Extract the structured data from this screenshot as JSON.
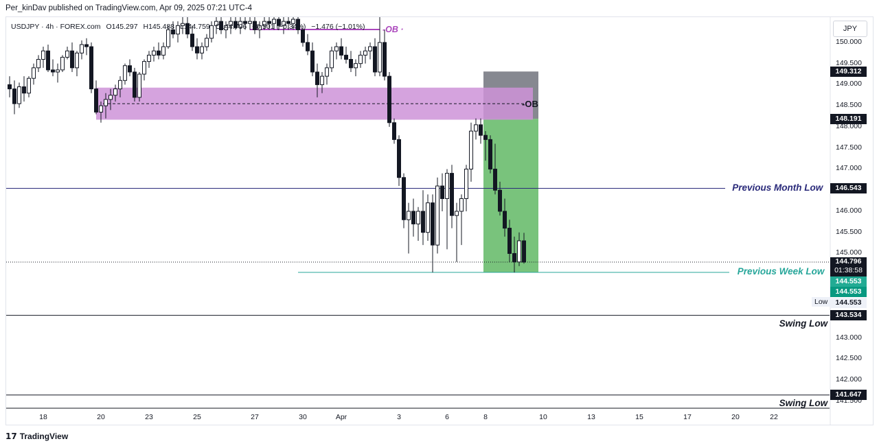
{
  "header": {
    "published": "Per_kinDav published on TradingView.com, Apr 09, 2025 07:21 UTC-4"
  },
  "ohlc": {
    "symbol_info": "USDJPY · 4h · FOREX.com",
    "open": "O145.297",
    "high": "H145.488",
    "low": "L144.759",
    "close": "C144.796",
    "change": "−0.501 (−0.34%)",
    "change2": "−1.476 (−1.01%)"
  },
  "currency": "JPY",
  "footer": {
    "brand": "TradingView"
  },
  "chart_data": {
    "type": "candlestick",
    "timeframe": "4h",
    "ylim": [
      141.35,
      150.6
    ],
    "y_ticks": [
      {
        "value": 150.0,
        "label": "150.000"
      },
      {
        "value": 149.5,
        "label": "149.500"
      },
      {
        "value": 149.0,
        "label": "149.000"
      },
      {
        "value": 148.5,
        "label": "148.500"
      },
      {
        "value": 148.0,
        "label": "148.000"
      },
      {
        "value": 147.5,
        "label": "147.500"
      },
      {
        "value": 147.0,
        "label": "147.000"
      },
      {
        "value": 146.0,
        "label": "146.000"
      },
      {
        "value": 145.5,
        "label": "145.500"
      },
      {
        "value": 145.0,
        "label": "145.000"
      },
      {
        "value": 143.0,
        "label": "143.000"
      },
      {
        "value": 142.5,
        "label": "142.500"
      },
      {
        "value": 142.0,
        "label": "142.000"
      },
      {
        "value": 141.5,
        "label": "141.500"
      }
    ],
    "x_ticks": [
      {
        "index": 7,
        "label": "18"
      },
      {
        "index": 19,
        "label": "20"
      },
      {
        "index": 29,
        "label": "23"
      },
      {
        "index": 39,
        "label": "25"
      },
      {
        "index": 51,
        "label": "27"
      },
      {
        "index": 61,
        "label": "30"
      },
      {
        "index": 69,
        "label": "Apr"
      },
      {
        "index": 81,
        "label": "3"
      },
      {
        "index": 91,
        "label": "6"
      },
      {
        "index": 99,
        "label": "8"
      },
      {
        "index": 111,
        "label": "10"
      },
      {
        "index": 121,
        "label": "13"
      },
      {
        "index": 131,
        "label": "15"
      },
      {
        "index": 141,
        "label": "17"
      },
      {
        "index": 151,
        "label": "20"
      },
      {
        "index": 159,
        "label": "22"
      }
    ],
    "x_range": [
      0,
      169
    ],
    "price_labels": [
      {
        "value": 149.312,
        "label": "149.312",
        "color": "#131722"
      },
      {
        "value": 148.191,
        "label": "148.191",
        "color": "#131722"
      },
      {
        "value": 146.543,
        "label": "146.543",
        "color": "#131722"
      },
      {
        "value": 144.796,
        "label": "144.796",
        "color": "#131722",
        "sub": "01:38:58"
      },
      {
        "value": 144.553,
        "label": "144.553",
        "color": "#22ab94"
      },
      {
        "value": 144.553,
        "label": "144.553",
        "color": "#089981"
      },
      {
        "value": 144.553,
        "label": "144.553",
        "color": "#eef1f8",
        "text_color": "#131722",
        "tag": "Low"
      },
      {
        "value": 143.534,
        "label": "143.534",
        "color": "#131722"
      },
      {
        "value": 141.647,
        "label": "141.647",
        "color": "#131722"
      }
    ],
    "levels": [
      {
        "name": "Previous Month Low",
        "value": 146.543,
        "color": "#2a2a7a"
      },
      {
        "name": "Previous Week Low",
        "value": 144.553,
        "color": "#26a69a"
      },
      {
        "name": "Swing Low",
        "value": 143.534,
        "color": "#131722"
      },
      {
        "name": "Swing Low",
        "value": 141.647,
        "color": "#131722"
      }
    ],
    "zones": [
      {
        "label": "OB",
        "top": 148.93,
        "bottom": 148.17,
        "x_from": 18,
        "x_to": 110,
        "color": "#ce93d8",
        "mid": 148.55
      },
      {
        "label": "OB",
        "top": 150.05,
        "bottom": 150.0,
        "x_from": 50,
        "x_to": 77,
        "color": "#ab47bc"
      }
    ],
    "position": {
      "entry": 148.191,
      "stop": 149.312,
      "target": 144.553,
      "x_from": 99,
      "x_to": 110
    },
    "current_price": 144.796,
    "candles": [
      [
        0,
        149.0,
        149.2,
        148.7,
        148.9
      ],
      [
        1,
        148.9,
        149.1,
        148.3,
        148.55
      ],
      [
        2,
        148.55,
        149.05,
        148.45,
        148.95
      ],
      [
        3,
        148.95,
        149.2,
        148.6,
        148.8
      ],
      [
        4,
        148.8,
        149.2,
        148.7,
        149.15
      ],
      [
        5,
        149.15,
        149.5,
        149.0,
        149.4
      ],
      [
        6,
        149.4,
        149.7,
        149.3,
        149.6
      ],
      [
        7,
        149.6,
        149.9,
        149.4,
        149.8
      ],
      [
        8,
        149.8,
        149.95,
        149.3,
        149.35
      ],
      [
        9,
        149.35,
        149.6,
        149.2,
        149.3
      ],
      [
        10,
        149.3,
        149.5,
        149.05,
        149.35
      ],
      [
        11,
        149.35,
        149.7,
        149.3,
        149.65
      ],
      [
        12,
        149.65,
        149.9,
        149.6,
        149.8
      ],
      [
        13,
        149.8,
        150.0,
        149.3,
        149.4
      ],
      [
        14,
        149.4,
        149.8,
        149.2,
        149.75
      ],
      [
        15,
        149.75,
        150.05,
        149.6,
        149.95
      ],
      [
        16,
        149.95,
        150.1,
        149.7,
        149.9
      ],
      [
        17,
        149.9,
        150.0,
        148.8,
        148.9
      ],
      [
        18,
        148.9,
        149.1,
        148.3,
        148.35
      ],
      [
        19,
        148.35,
        148.6,
        148.1,
        148.5
      ],
      [
        20,
        148.5,
        148.8,
        148.2,
        148.65
      ],
      [
        21,
        148.65,
        148.9,
        148.4,
        148.75
      ],
      [
        22,
        148.75,
        149.0,
        148.6,
        148.9
      ],
      [
        23,
        148.9,
        149.2,
        148.7,
        149.1
      ],
      [
        24,
        149.1,
        149.5,
        149.0,
        149.45
      ],
      [
        25,
        149.45,
        149.6,
        149.2,
        149.3
      ],
      [
        26,
        149.3,
        149.4,
        148.6,
        148.7
      ],
      [
        27,
        148.7,
        149.3,
        148.6,
        149.25
      ],
      [
        28,
        149.25,
        149.6,
        149.1,
        149.55
      ],
      [
        29,
        149.55,
        149.8,
        149.4,
        149.7
      ],
      [
        30,
        149.7,
        149.9,
        149.55,
        149.8
      ],
      [
        31,
        149.8,
        150.0,
        149.6,
        149.7
      ],
      [
        32,
        149.7,
        150.0,
        149.6,
        149.9
      ],
      [
        33,
        149.9,
        150.4,
        149.85,
        150.3
      ],
      [
        34,
        150.3,
        150.5,
        150.1,
        150.2
      ],
      [
        35,
        150.2,
        150.5,
        150.0,
        150.4
      ],
      [
        36,
        150.4,
        150.6,
        150.2,
        150.45
      ],
      [
        37,
        150.45,
        150.6,
        150.1,
        150.2
      ],
      [
        38,
        150.2,
        150.4,
        149.8,
        149.9
      ],
      [
        39,
        149.9,
        150.1,
        149.6,
        149.75
      ],
      [
        40,
        149.75,
        150.0,
        149.6,
        149.9
      ],
      [
        41,
        149.9,
        150.2,
        149.8,
        150.1
      ],
      [
        42,
        150.1,
        150.5,
        150.0,
        150.4
      ],
      [
        43,
        150.4,
        150.6,
        150.2,
        150.5
      ],
      [
        44,
        150.5,
        150.6,
        150.2,
        150.3
      ],
      [
        45,
        150.3,
        150.5,
        150.1,
        150.4
      ],
      [
        46,
        150.4,
        150.6,
        150.2,
        150.5
      ],
      [
        47,
        150.5,
        150.6,
        150.3,
        150.35
      ],
      [
        48,
        150.35,
        150.6,
        150.2,
        150.5
      ],
      [
        49,
        150.5,
        150.6,
        150.3,
        150.45
      ],
      [
        50,
        150.45,
        150.6,
        150.3,
        150.5
      ],
      [
        51,
        150.5,
        150.6,
        150.2,
        150.3
      ],
      [
        52,
        150.3,
        150.5,
        150.1,
        150.4
      ],
      [
        53,
        150.4,
        150.6,
        150.3,
        150.5
      ],
      [
        54,
        150.5,
        150.6,
        150.3,
        150.45
      ],
      [
        55,
        150.45,
        150.6,
        150.3,
        150.55
      ],
      [
        56,
        150.55,
        150.6,
        150.3,
        150.4
      ],
      [
        57,
        150.4,
        150.6,
        150.2,
        150.5
      ],
      [
        58,
        150.5,
        150.6,
        150.3,
        150.45
      ],
      [
        59,
        150.45,
        150.6,
        150.3,
        150.55
      ],
      [
        60,
        150.55,
        150.6,
        150.2,
        150.3
      ],
      [
        61,
        150.3,
        150.4,
        149.9,
        150.0
      ],
      [
        62,
        150.0,
        150.2,
        149.7,
        149.8
      ],
      [
        63,
        149.8,
        150.0,
        149.2,
        149.3
      ],
      [
        64,
        149.3,
        149.5,
        148.7,
        149.0
      ],
      [
        65,
        149.0,
        149.3,
        148.8,
        149.2
      ],
      [
        66,
        149.2,
        149.5,
        149.0,
        149.4
      ],
      [
        67,
        149.4,
        149.9,
        149.3,
        149.8
      ],
      [
        68,
        149.8,
        150.0,
        149.6,
        149.9
      ],
      [
        69,
        149.9,
        150.1,
        149.6,
        149.7
      ],
      [
        70,
        149.7,
        149.9,
        149.5,
        149.6
      ],
      [
        71,
        149.6,
        149.8,
        149.3,
        149.4
      ],
      [
        72,
        149.4,
        149.6,
        149.2,
        149.5
      ],
      [
        73,
        149.5,
        149.8,
        149.4,
        149.7
      ],
      [
        74,
        149.7,
        149.9,
        149.5,
        149.8
      ],
      [
        75,
        149.8,
        150.0,
        149.6,
        149.9
      ],
      [
        76,
        149.9,
        150.1,
        149.2,
        149.3
      ],
      [
        77,
        149.3,
        150.6,
        149.2,
        150.0
      ],
      [
        78,
        150.0,
        150.3,
        149.1,
        149.2
      ],
      [
        79,
        149.2,
        149.3,
        148.0,
        148.1
      ],
      [
        80,
        148.1,
        148.2,
        147.6,
        147.7
      ],
      [
        81,
        147.7,
        147.8,
        146.6,
        146.8
      ],
      [
        82,
        146.8,
        146.9,
        145.6,
        145.8
      ],
      [
        83,
        145.8,
        146.2,
        145.0,
        146.0
      ],
      [
        84,
        146.0,
        146.3,
        145.4,
        145.7
      ],
      [
        85,
        145.7,
        146.1,
        145.3,
        146.0
      ],
      [
        86,
        146.0,
        146.5,
        145.2,
        145.5
      ],
      [
        87,
        145.5,
        146.4,
        145.3,
        146.2
      ],
      [
        88,
        146.2,
        146.4,
        144.55,
        145.2
      ],
      [
        89,
        145.2,
        146.8,
        145.0,
        146.6
      ],
      [
        90,
        146.6,
        146.9,
        146.0,
        146.3
      ],
      [
        91,
        146.3,
        147.0,
        145.1,
        146.9
      ],
      [
        92,
        146.9,
        147.1,
        145.6,
        145.9
      ],
      [
        93,
        145.9,
        146.2,
        144.8,
        146.0
      ],
      [
        94,
        146.0,
        146.4,
        145.2,
        146.3
      ],
      [
        95,
        146.3,
        147.1,
        146.0,
        147.0
      ],
      [
        96,
        147.0,
        148.1,
        146.7,
        147.9
      ],
      [
        97,
        147.9,
        148.2,
        147.7,
        148.05
      ],
      [
        98,
        148.05,
        148.2,
        147.6,
        147.8
      ],
      [
        99,
        147.8,
        147.9,
        147.2,
        147.7
      ],
      [
        100,
        147.7,
        147.8,
        146.9,
        147.0
      ],
      [
        101,
        147.0,
        147.6,
        146.4,
        146.5
      ],
      [
        102,
        146.5,
        146.7,
        145.9,
        146.0
      ],
      [
        103,
        146.0,
        146.3,
        145.4,
        145.6
      ],
      [
        104,
        145.6,
        145.8,
        144.8,
        145.0
      ],
      [
        105,
        145.0,
        145.4,
        144.55,
        144.8
      ],
      [
        106,
        144.8,
        145.5,
        144.7,
        145.3
      ],
      [
        107,
        145.3,
        145.49,
        144.76,
        144.796
      ]
    ]
  }
}
